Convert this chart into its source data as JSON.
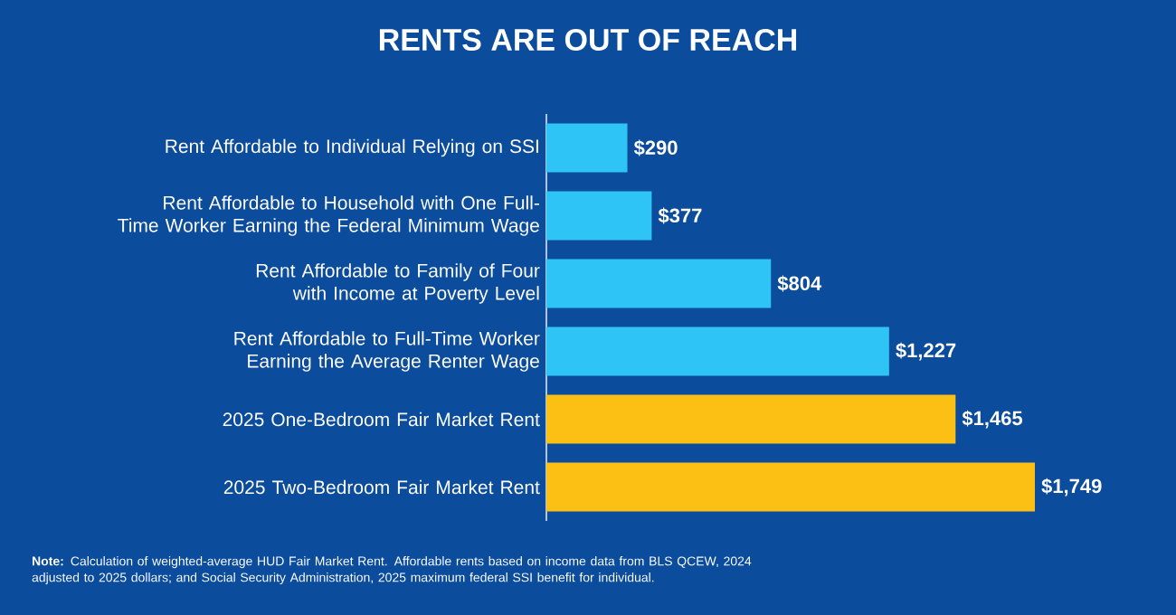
{
  "chart_data": {
    "type": "bar",
    "orientation": "horizontal",
    "title": "RENTS ARE OUT OF REACH",
    "categories": [
      "Rent Affordable to Individual Relying on SSI",
      "Rent Affordable to Household with One Full-Time Worker Earning the Federal Minimum Wage",
      "Rent Affordable to Family of Four with Income at Poverty Level",
      "Rent Affordable to Full-Time Worker Earning the Average Renter Wage",
      "2025 One-Bedroom Fair Market Rent",
      "2025 Two-Bedroom Fair Market Rent"
    ],
    "values": [
      290,
      377,
      804,
      1227,
      1465,
      1749
    ],
    "value_labels": [
      "$290",
      "$377",
      "$804",
      "$1,227",
      "$1,465",
      "$1,749"
    ],
    "colors": [
      "#2ec4f5",
      "#2ec4f5",
      "#2ec4f5",
      "#2ec4f5",
      "#fcbf14",
      "#fcbf14"
    ],
    "xlim": [
      0,
      1749
    ],
    "tick_labels": "y",
    "annotations": [
      "**Note:** Calculation of weighted-average HUD Fair Market Rent. Affordable rents based on income data from BLS QCEW, 2024 adjusted to 2025 dollars; and Social Security Administration, 2025 maximum federal SSI benefit for individual."
    ]
  }
}
